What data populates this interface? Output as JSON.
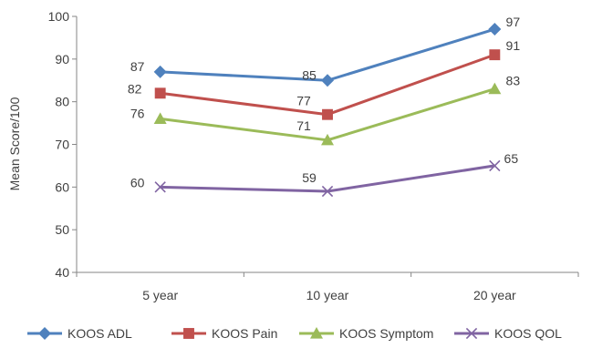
{
  "chart_data": {
    "type": "line",
    "categories": [
      "5 year",
      "10 year",
      "20 year"
    ],
    "ylabel": "Mean Score/100",
    "xlabel": "",
    "ylim": [
      40,
      100
    ],
    "yticks": [
      40,
      50,
      60,
      70,
      80,
      90,
      100
    ],
    "grid": false,
    "legend_position": "bottom",
    "series": [
      {
        "name": "KOOS ADL",
        "values": [
          87,
          85,
          97
        ],
        "color": "#4f81bd",
        "marker": "diamond"
      },
      {
        "name": "KOOS Pain",
        "values": [
          82,
          77,
          91
        ],
        "color": "#c0504d",
        "marker": "square"
      },
      {
        "name": "KOOS Symptom",
        "values": [
          76,
          71,
          83
        ],
        "color": "#9bbb59",
        "marker": "triangle"
      },
      {
        "name": "KOOS QOL",
        "values": [
          60,
          59,
          65
        ],
        "color": "#8064a2",
        "marker": "x"
      }
    ]
  }
}
